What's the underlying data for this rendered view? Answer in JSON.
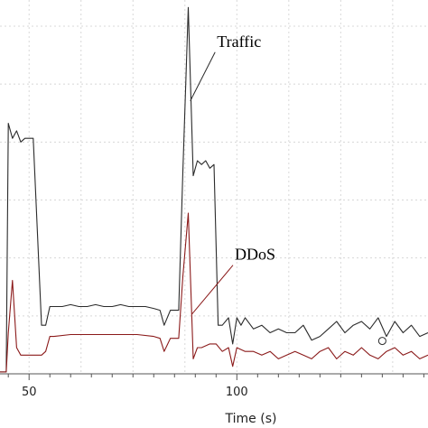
{
  "chart_data": {
    "type": "line",
    "xlabel": "Time (s)",
    "ylabel": "",
    "xlim": [
      43,
      146
    ],
    "ylim": [
      0,
      100
    ],
    "x_ticks": [
      50,
      100
    ],
    "grid": true,
    "colors": {
      "traffic": "#2b2b2b",
      "ddos": "#8b1a1a",
      "grid": "#d8d8d8",
      "axis": "#555555"
    },
    "series": [
      {
        "key": "traffic",
        "x": [
          43.0,
          44.5,
          45.0,
          46.0,
          47.0,
          48.0,
          49.0,
          50.5,
          51.0,
          53.0,
          54.0,
          55.0,
          56.0,
          58.0,
          60.0,
          62.0,
          64.0,
          66.0,
          68.0,
          70.0,
          72.0,
          74.0,
          76.0,
          78.0,
          80.0,
          81.5,
          82.5,
          84.0,
          86.0,
          87.0,
          88.3,
          89.5,
          90.5,
          91.5,
          92.5,
          93.5,
          94.5,
          95.5,
          96.5,
          98.0,
          99.0,
          100.0,
          101.0,
          102.0,
          104.0,
          106.0,
          108.0,
          110.0,
          112.0,
          114.0,
          116.0,
          118.0,
          120.0,
          122.0,
          124.0,
          126.0,
          128.0,
          130.0,
          132.0,
          134.0,
          136.0,
          138.0,
          140.0,
          142.0,
          144.0,
          146.0
        ],
        "y": [
          0.5,
          0.5,
          67,
          63,
          65,
          62,
          63,
          63,
          63,
          13,
          13,
          18,
          18,
          18,
          18.5,
          18,
          18,
          18.5,
          18,
          18,
          18.5,
          18,
          18,
          18,
          17.5,
          17,
          13,
          17,
          17,
          54,
          98,
          53,
          57,
          56,
          57,
          55,
          56,
          13,
          13,
          15,
          8,
          15,
          13,
          15,
          12,
          13,
          11,
          12,
          11,
          11,
          13,
          9,
          10,
          12,
          14,
          11,
          13,
          14,
          12,
          15,
          10,
          14,
          11,
          13,
          10,
          11
        ]
      },
      {
        "key": "ddos",
        "x": [
          43.0,
          44.5,
          45.0,
          46.0,
          47.0,
          48.0,
          50.5,
          51.0,
          53.0,
          54.0,
          55.0,
          56.0,
          60.0,
          64.0,
          68.0,
          72.0,
          76.0,
          80.0,
          81.5,
          82.5,
          84.0,
          86.0,
          87.0,
          88.3,
          89.5,
          90.5,
          91.5,
          93.5,
          95.0,
          96.5,
          98.0,
          99.0,
          100.0,
          102.0,
          104.0,
          106.0,
          108.0,
          110.0,
          112.0,
          114.0,
          116.0,
          118.0,
          120.0,
          122.0,
          124.0,
          126.0,
          128.0,
          130.0,
          132.0,
          134.0,
          136.0,
          138.0,
          140.0,
          142.0,
          144.0,
          146.0
        ],
        "y": [
          0.5,
          0.5,
          11,
          25,
          7,
          5,
          5,
          5,
          5,
          6,
          10,
          10,
          10.5,
          10.5,
          10.5,
          10.5,
          10.5,
          10,
          9.5,
          6,
          9.5,
          9.5,
          26,
          43,
          4,
          7,
          7,
          8,
          8,
          6,
          7,
          2,
          7,
          6,
          6,
          5,
          6,
          4,
          5,
          6,
          5,
          4,
          6,
          7,
          4,
          6,
          5,
          7,
          5,
          4,
          6,
          7,
          5,
          6,
          4,
          5
        ]
      }
    ],
    "annotations": [
      {
        "text": "Traffic",
        "series": "traffic",
        "text_at": [
          95.2,
          87.5
        ],
        "points_to": [
          88.8,
          73
        ]
      },
      {
        "text": "DDoS",
        "series": "ddos",
        "text_at": [
          99.5,
          30.5
        ],
        "points_to": [
          89.2,
          16
        ]
      }
    ],
    "marker": {
      "series": "traffic",
      "x": 135.0,
      "y": 8.8
    }
  }
}
